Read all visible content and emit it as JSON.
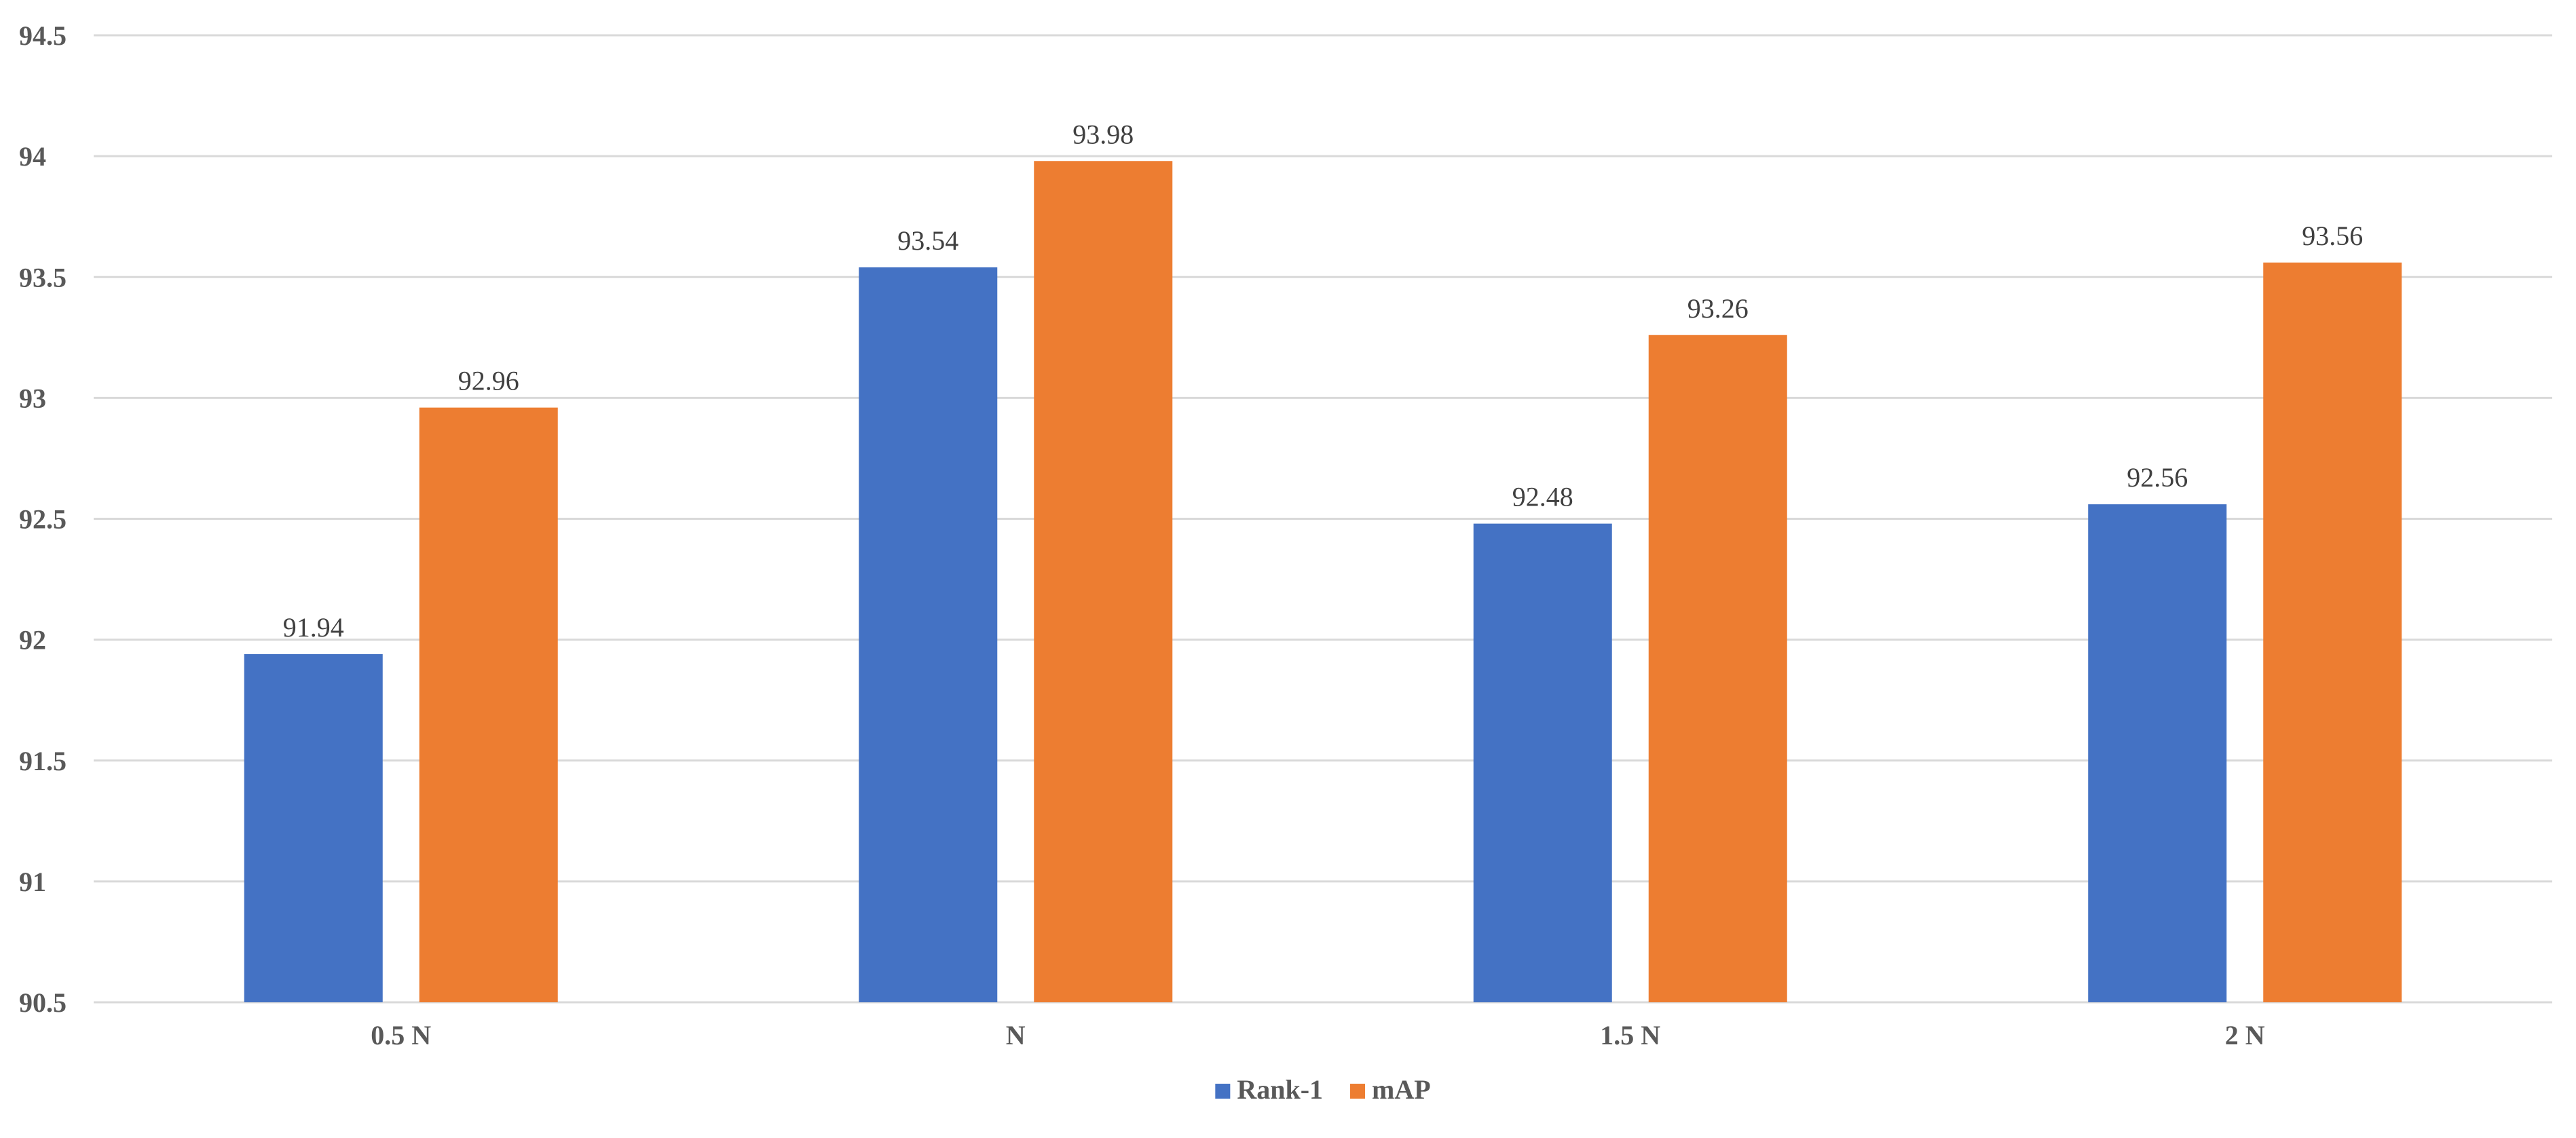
{
  "chart_data": {
    "type": "bar",
    "categories": [
      "0.5 N",
      "N",
      "1.5 N",
      "2 N"
    ],
    "series": [
      {
        "name": "Rank-1",
        "values": [
          91.94,
          93.54,
          92.48,
          92.56
        ],
        "color": "#4472C4"
      },
      {
        "name": "mAP",
        "values": [
          92.96,
          93.98,
          93.26,
          93.56
        ],
        "color": "#ED7D31"
      }
    ],
    "yticks": [
      "90.5",
      "91",
      "91.5",
      "92",
      "92.5",
      "93",
      "93.5",
      "94",
      "94.5"
    ],
    "ylim": [
      90.5,
      94.5
    ],
    "data_labels": [
      [
        "91.94",
        "93.54",
        "92.48",
        "92.56"
      ],
      [
        "92.96",
        "93.98",
        "93.26",
        "93.56"
      ]
    ],
    "title": "",
    "xlabel": "",
    "ylabel": "",
    "grid": true,
    "legend_position": "bottom"
  }
}
